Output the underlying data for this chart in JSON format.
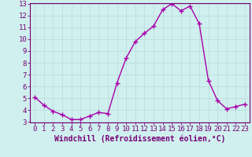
{
  "x": [
    0,
    1,
    2,
    3,
    4,
    5,
    6,
    7,
    8,
    9,
    10,
    11,
    12,
    13,
    14,
    15,
    16,
    17,
    18,
    19,
    20,
    21,
    22,
    23
  ],
  "y": [
    5.1,
    4.4,
    3.9,
    3.6,
    3.2,
    3.2,
    3.5,
    3.8,
    3.7,
    6.3,
    8.4,
    9.8,
    10.5,
    11.1,
    12.5,
    13.0,
    12.4,
    12.8,
    11.3,
    6.5,
    4.8,
    4.1,
    4.3,
    4.5
  ],
  "line_color": "#aa00aa",
  "marker": "+",
  "marker_size": 4,
  "bg_color": "#cff0ee",
  "grid_color": "#bbdddd",
  "xlabel": "Windchill (Refroidissement éolien,°C)",
  "xlabel_fontsize": 7,
  "tick_fontsize": 6.5,
  "ylim": [
    3,
    13
  ],
  "xlim": [
    -0.5,
    23.5
  ],
  "yticks": [
    3,
    4,
    5,
    6,
    7,
    8,
    9,
    10,
    11,
    12,
    13
  ],
  "xticks": [
    0,
    1,
    2,
    3,
    4,
    5,
    6,
    7,
    8,
    9,
    10,
    11,
    12,
    13,
    14,
    15,
    16,
    17,
    18,
    19,
    20,
    21,
    22,
    23
  ],
  "line_width": 1.0,
  "spine_color": "#770077",
  "tick_color": "#770077",
  "label_color": "#770077"
}
